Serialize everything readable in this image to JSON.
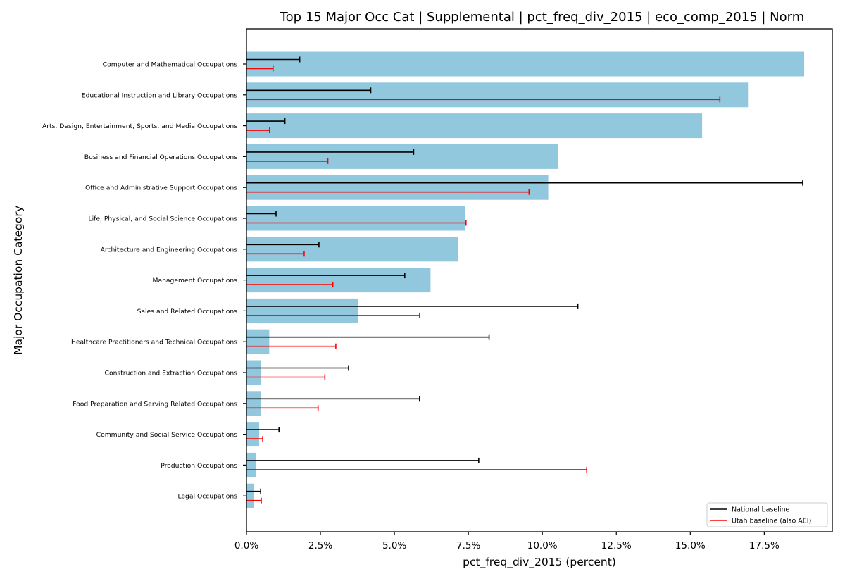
{
  "chart_data": {
    "type": "bar",
    "orientation": "horizontal",
    "title": "Top 15 Major Occ Cat | Supplemental | pct_freq_div_2015 | eco_comp_2015 | Norm",
    "xlabel": "pct_freq_div_2015 (percent)",
    "ylabel": "Major Occupation Category",
    "xlim": [
      0,
      19.8
    ],
    "x_ticks": [
      0,
      2.5,
      5.0,
      7.5,
      10.0,
      12.5,
      15.0,
      17.5
    ],
    "x_tick_labels": [
      "0.0%",
      "2.5%",
      "5.0%",
      "7.5%",
      "10.0%",
      "12.5%",
      "15.0%",
      "17.5%"
    ],
    "grid": false,
    "bar_color": "#92c8dd",
    "categories": [
      "Computer and Mathematical Occupations",
      "Educational Instruction and Library Occupations",
      "Arts, Design, Entertainment, Sports, and Media Occupations",
      "Business and Financial Operations Occupations",
      "Office and Administrative Support Occupations",
      "Life, Physical, and Social Science Occupations",
      "Architecture and Engineering Occupations",
      "Management Occupations",
      "Sales and Related Occupations",
      "Healthcare Practitioners and Technical Occupations",
      "Construction and Extraction Occupations",
      "Food Preparation and Serving Related Occupations",
      "Community and Social Service Occupations",
      "Production Occupations",
      "Legal Occupations"
    ],
    "values": [
      18.85,
      16.95,
      15.4,
      10.52,
      10.2,
      7.4,
      7.15,
      6.22,
      3.78,
      0.77,
      0.5,
      0.48,
      0.43,
      0.33,
      0.25
    ],
    "series": [
      {
        "name": "National baseline",
        "color": "#000000",
        "values": [
          1.8,
          4.2,
          1.3,
          5.65,
          18.8,
          1.0,
          2.45,
          5.35,
          11.2,
          8.2,
          3.45,
          5.85,
          1.1,
          7.85,
          0.48
        ]
      },
      {
        "name": "Utah baseline (also AEI)",
        "color": "#ff0000",
        "values": [
          0.9,
          16.0,
          0.78,
          2.75,
          9.55,
          7.42,
          1.95,
          2.92,
          5.85,
          3.02,
          2.65,
          2.42,
          0.55,
          11.5,
          0.5
        ]
      }
    ],
    "legend_position": "bottom-right"
  }
}
